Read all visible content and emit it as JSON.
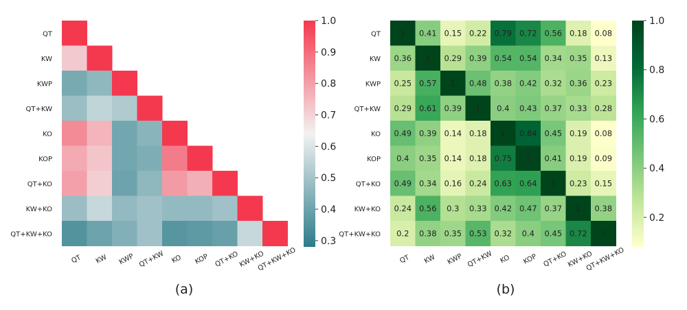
{
  "chart_data": [
    {
      "type": "heatmap",
      "panel_label": "(a)",
      "mask": "lower-triangle",
      "labels": [
        "QT",
        "KW",
        "KWP",
        "QT+KW",
        "KO",
        "KOP",
        "QT+KO",
        "KW+KO",
        "QT+KW+KO"
      ],
      "values": [
        [
          1.0
        ],
        [
          0.72,
          1.0
        ],
        [
          0.42,
          0.46,
          1.0
        ],
        [
          0.48,
          0.55,
          0.52,
          1.0
        ],
        [
          0.84,
          0.76,
          0.41,
          0.45,
          1.0
        ],
        [
          0.78,
          0.73,
          0.41,
          0.43,
          0.87,
          1.0
        ],
        [
          0.8,
          0.71,
          0.4,
          0.46,
          0.81,
          0.77,
          1.0
        ],
        [
          0.48,
          0.56,
          0.47,
          0.49,
          0.47,
          0.47,
          0.49,
          1.0
        ],
        [
          0.35,
          0.4,
          0.44,
          0.49,
          0.36,
          0.37,
          0.39,
          0.56,
          1.0
        ]
      ],
      "colormap": "diverging-teal-white-red",
      "colors": [
        "#2b7c8a",
        "#f2f2f2",
        "#f4394f"
      ],
      "vmin": 0.28,
      "vmax": 1.0,
      "colorbar_ticks": [
        "1.0",
        "0.9",
        "0.8",
        "0.7",
        "0.6",
        "0.5",
        "0.4",
        "0.3"
      ],
      "show_values": false
    },
    {
      "type": "heatmap",
      "panel_label": "(b)",
      "mask": "none",
      "labels": [
        "QT",
        "KW",
        "KWP",
        "QT+KW",
        "KO",
        "KOP",
        "QT+KO",
        "KW+KO",
        "QT+KW+KO"
      ],
      "values": [
        [
          1,
          0.41,
          0.15,
          0.22,
          0.79,
          0.72,
          0.56,
          0.18,
          0.08
        ],
        [
          0.36,
          1,
          0.29,
          0.39,
          0.54,
          0.54,
          0.34,
          0.35,
          0.13
        ],
        [
          0.25,
          0.57,
          1,
          0.48,
          0.38,
          0.42,
          0.32,
          0.36,
          0.23
        ],
        [
          0.29,
          0.61,
          0.39,
          1,
          0.4,
          0.43,
          0.37,
          0.33,
          0.28
        ],
        [
          0.49,
          0.39,
          0.14,
          0.18,
          1,
          0.84,
          0.45,
          0.19,
          0.08
        ],
        [
          0.4,
          0.35,
          0.14,
          0.18,
          0.75,
          1,
          0.41,
          0.19,
          0.09
        ],
        [
          0.49,
          0.34,
          0.16,
          0.24,
          0.63,
          0.64,
          1,
          0.23,
          0.15
        ],
        [
          0.24,
          0.56,
          0.3,
          0.33,
          0.42,
          0.47,
          0.37,
          1,
          0.38
        ],
        [
          0.2,
          0.38,
          0.35,
          0.53,
          0.32,
          0.4,
          0.45,
          0.72,
          1
        ]
      ],
      "colormap": "YlGn",
      "colors": [
        "#ffffcc",
        "#c2e699",
        "#78c679",
        "#31a354",
        "#006837",
        "#00441b"
      ],
      "vmin": 0.08,
      "vmax": 1.0,
      "colorbar_ticks": [
        "1.0",
        "0.8",
        "0.6",
        "0.4",
        "0.2"
      ],
      "show_values": true
    }
  ]
}
